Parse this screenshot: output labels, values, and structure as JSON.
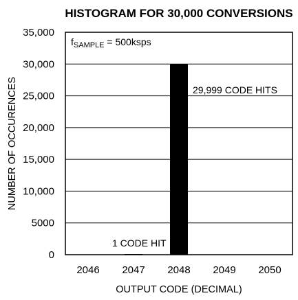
{
  "chart_data": {
    "type": "bar",
    "title": "HISTOGRAM FOR 30,000 CONVERSIONS",
    "xlabel": "OUTPUT CODE (DECIMAL)",
    "ylabel": "NUMBER OF OCCURENCES",
    "categories": [
      "2046",
      "2047",
      "2048",
      "2049",
      "2050"
    ],
    "values": [
      0,
      1,
      29999,
      0,
      0
    ],
    "ylim": [
      0,
      35000
    ],
    "yticks": [
      0,
      5000,
      10000,
      15000,
      20000,
      25000,
      30000,
      35000
    ],
    "ytick_labels": [
      "0",
      "5000",
      "10,000",
      "15,000",
      "20,000",
      "25,000",
      "30,000",
      "35,000"
    ],
    "grid": true,
    "bar_color": "#000000",
    "annotations": {
      "sample_rate_prefix": "f",
      "sample_rate_subscript": "SAMPLE",
      "sample_rate_value": " = 500ksps",
      "peak_label": "29,999 CODE HITS",
      "low_label": "1 CODE HIT"
    }
  }
}
